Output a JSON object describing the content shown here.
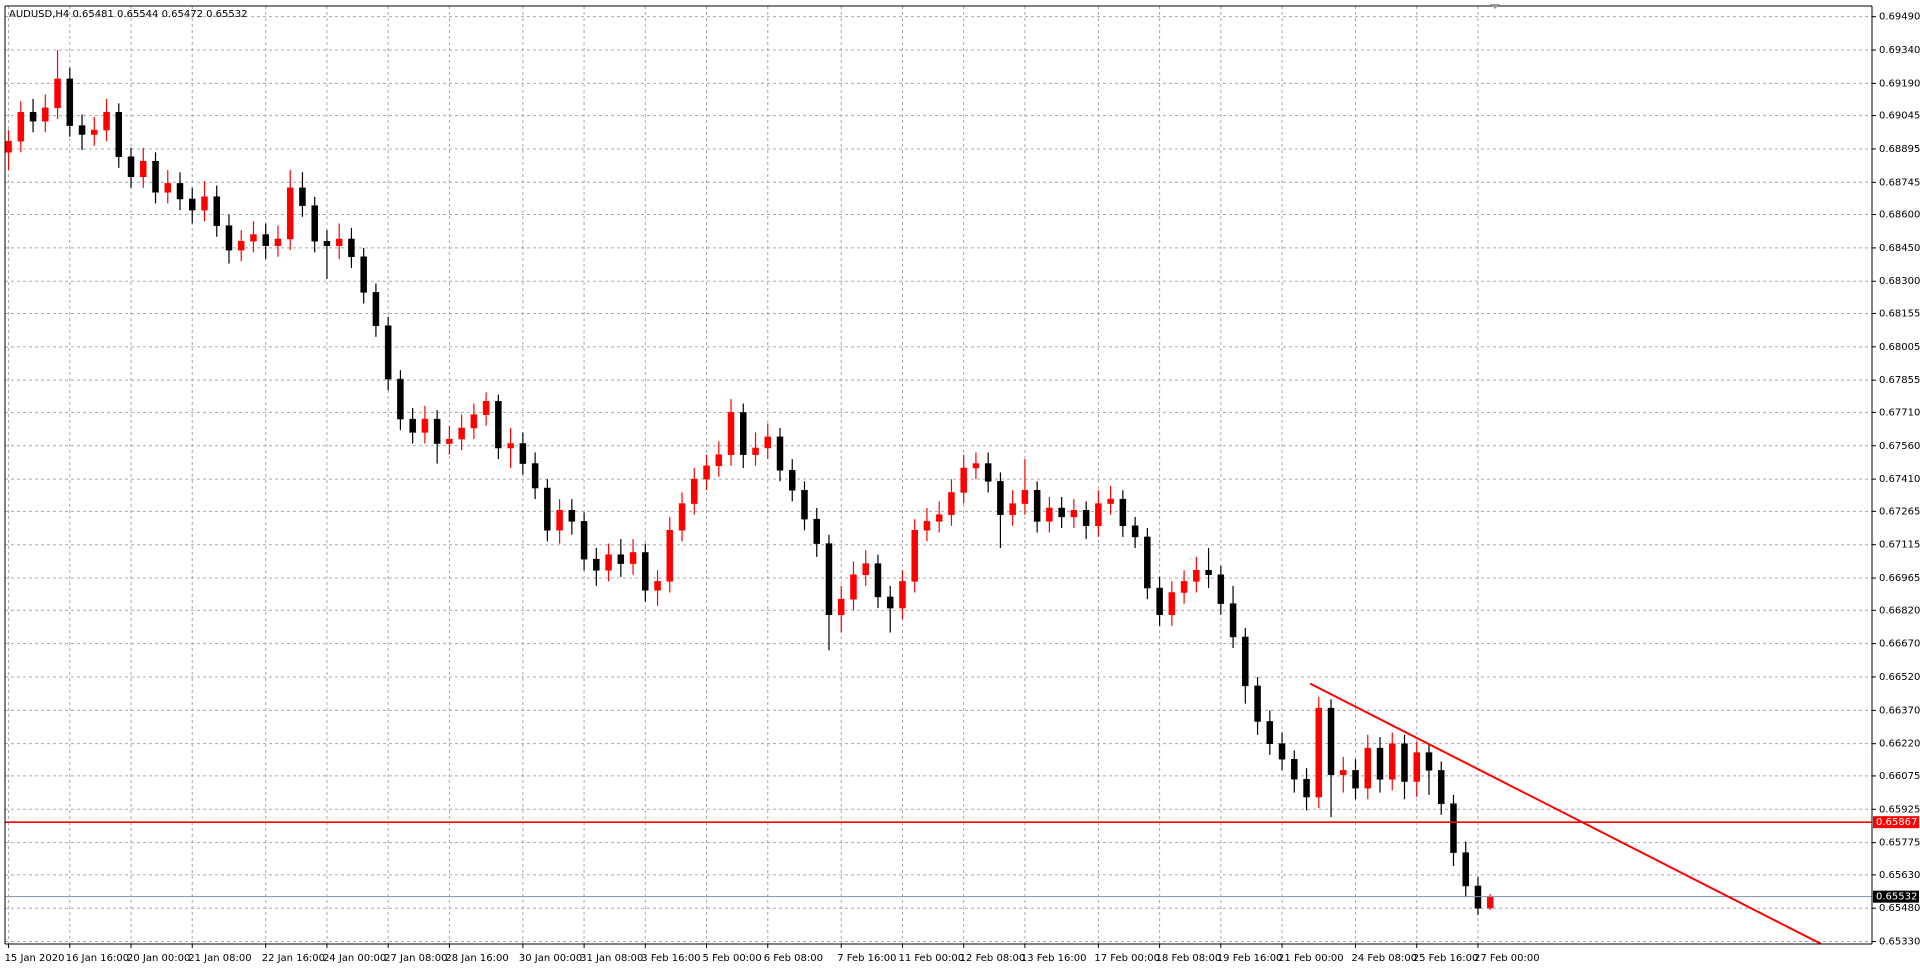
{
  "chart_data": {
    "type": "candlestick",
    "title": "AUDUSD,H4",
    "up_color": "#ff0000",
    "down_color": "#000000",
    "grid": true,
    "ylim": [
      0.65319,
      0.69538
    ],
    "yticks": [
      {
        "value": 0.6949,
        "label": "0.69490"
      },
      {
        "value": 0.6934,
        "label": "0.69340"
      },
      {
        "value": 0.6919,
        "label": "0.69190"
      },
      0.69045,
      0.68895,
      0.68745,
      {
        "value": 0.686,
        "label": "0.68600"
      },
      {
        "value": 0.6845,
        "label": "0.68450"
      },
      {
        "value": 0.683,
        "label": "0.68300"
      },
      0.68155,
      0.68005,
      0.67855,
      {
        "value": 0.6771,
        "label": "0.67710"
      },
      {
        "value": 0.6756,
        "label": "0.67560"
      },
      {
        "value": 0.6741,
        "label": "0.67410"
      },
      0.67265,
      0.67115,
      0.66965,
      {
        "value": 0.6682,
        "label": "0.66820"
      },
      {
        "value": 0.6667,
        "label": "0.66670"
      },
      {
        "value": 0.6652,
        "label": "0.66520"
      },
      {
        "value": 0.6637,
        "label": "0.66370"
      },
      {
        "value": 0.6622,
        "label": "0.66220"
      },
      0.66075,
      0.65925,
      0.65775,
      {
        "value": 0.6563,
        "label": "0.65630"
      },
      {
        "value": 0.6548,
        "label": "0.65480"
      },
      {
        "value": 0.6533,
        "label": "0.65330"
      }
    ],
    "categories": [
      "15 Jan 2020",
      null,
      null,
      null,
      null,
      "16 Jan 16:00",
      null,
      null,
      null,
      null,
      "20 Jan 00:00",
      null,
      null,
      null,
      null,
      "21 Jan 08:00",
      null,
      null,
      null,
      null,
      null,
      "22 Jan 16:00",
      null,
      null,
      null,
      null,
      "24 Jan 00:00",
      null,
      null,
      null,
      null,
      "27 Jan 08:00",
      null,
      null,
      null,
      null,
      "28 Jan 16:00",
      null,
      null,
      null,
      null,
      null,
      "30 Jan 00:00",
      null,
      null,
      null,
      null,
      "31 Jan 08:00",
      null,
      null,
      null,
      null,
      "3 Feb 16:00",
      null,
      null,
      null,
      null,
      "5 Feb 00:00",
      null,
      null,
      null,
      null,
      "6 Feb 08:00",
      null,
      null,
      null,
      null,
      null,
      "7 Feb 16:00",
      null,
      null,
      null,
      null,
      "11 Feb 00:00",
      null,
      null,
      null,
      null,
      "12 Feb 08:00",
      null,
      null,
      null,
      null,
      "13 Feb 16:00",
      null,
      null,
      null,
      null,
      null,
      "17 Feb 00:00",
      null,
      null,
      null,
      null,
      "18 Feb 08:00",
      null,
      null,
      null,
      null,
      "19 Feb 16:00",
      null,
      null,
      null,
      null,
      "21 Feb 00:00",
      null,
      null,
      null,
      null,
      null,
      "24 Feb 08:00",
      null,
      null,
      null,
      null,
      "25 Feb 16:00",
      null,
      null,
      null,
      null,
      "27 Feb 00:00",
      null
    ],
    "open": [
      0.6888,
      0.6893,
      0.6906,
      0.6902,
      0.6908,
      0.6921,
      0.69,
      0.6896,
      0.6898,
      0.6906,
      0.6886,
      0.6877,
      0.6884,
      0.687,
      0.6874,
      0.6867,
      0.6862,
      0.6868,
      0.6855,
      0.6844,
      0.6848,
      0.6851,
      0.6846,
      0.6849,
      0.6872,
      0.6864,
      0.6848,
      0.6846,
      0.6849,
      0.6841,
      0.6825,
      0.681,
      0.6786,
      0.6768,
      0.6762,
      0.6768,
      0.6757,
      0.6759,
      0.6764,
      0.677,
      0.6776,
      0.6755,
      0.6757,
      0.6748,
      0.6737,
      0.6718,
      0.6727,
      0.6722,
      0.6705,
      0.67,
      0.6707,
      0.6703,
      0.6708,
      0.6691,
      0.6695,
      0.6718,
      0.673,
      0.6741,
      0.6747,
      0.6752,
      0.6771,
      0.6752,
      0.6755,
      0.676,
      0.6745,
      0.6736,
      0.6723,
      0.6712,
      0.668,
      0.6687,
      0.6698,
      0.6703,
      0.6688,
      0.6683,
      0.6695,
      0.6718,
      0.6722,
      0.6725,
      0.6735,
      0.6746,
      0.6748,
      0.674,
      0.6725,
      0.673,
      0.6736,
      0.6722,
      0.6728,
      0.6724,
      0.6727,
      0.672,
      0.673,
      0.6732,
      0.672,
      0.6715,
      0.6692,
      0.668,
      0.669,
      0.6695,
      0.67,
      0.6698,
      0.6685,
      0.667,
      0.6648,
      0.6632,
      0.6622,
      0.6615,
      0.6606,
      0.6598,
      0.6638,
      0.6608,
      0.661,
      0.6602,
      0.662,
      0.6606,
      0.6622,
      0.6605,
      0.6618,
      0.661,
      0.6595,
      0.6573,
      0.6558,
      0.65481
    ],
    "high": [
      0.6898,
      0.6911,
      0.6912,
      0.6914,
      0.6934,
      0.6926,
      0.6905,
      0.6904,
      0.6912,
      0.691,
      0.689,
      0.689,
      0.6888,
      0.688,
      0.6879,
      0.6872,
      0.6875,
      0.6873,
      0.686,
      0.6853,
      0.6857,
      0.6856,
      0.6855,
      0.688,
      0.6879,
      0.6868,
      0.6853,
      0.6856,
      0.6854,
      0.6845,
      0.6829,
      0.6814,
      0.679,
      0.6773,
      0.6774,
      0.6772,
      0.6765,
      0.677,
      0.6775,
      0.678,
      0.6779,
      0.6764,
      0.6762,
      0.6753,
      0.6741,
      0.6732,
      0.6732,
      0.6726,
      0.671,
      0.6712,
      0.6714,
      0.6714,
      0.6712,
      0.67,
      0.6724,
      0.6735,
      0.6746,
      0.6752,
      0.6758,
      0.6777,
      0.6775,
      0.6762,
      0.6766,
      0.6764,
      0.675,
      0.674,
      0.6728,
      0.6716,
      0.6693,
      0.6704,
      0.6709,
      0.6707,
      0.6693,
      0.67,
      0.6723,
      0.6728,
      0.6731,
      0.6741,
      0.6752,
      0.6753,
      0.6753,
      0.6744,
      0.6736,
      0.675,
      0.674,
      0.6733,
      0.6733,
      0.6732,
      0.6731,
      0.6736,
      0.6738,
      0.6736,
      0.6724,
      0.6719,
      0.6697,
      0.6695,
      0.67,
      0.6706,
      0.671,
      0.6702,
      0.6693,
      0.6674,
      0.6652,
      0.6637,
      0.6627,
      0.6619,
      0.6611,
      0.6643,
      0.6642,
      0.6616,
      0.6615,
      0.6626,
      0.6625,
      0.6627,
      0.6626,
      0.6623,
      0.6622,
      0.6614,
      0.6599,
      0.6578,
      0.6562,
      0.65544
    ],
    "low": [
      0.688,
      0.6888,
      0.6897,
      0.6897,
      0.6903,
      0.6895,
      0.6889,
      0.6891,
      0.6893,
      0.6881,
      0.6872,
      0.6872,
      0.6865,
      0.6865,
      0.6862,
      0.6856,
      0.6857,
      0.685,
      0.6838,
      0.6839,
      0.6843,
      0.684,
      0.6841,
      0.6844,
      0.6859,
      0.6843,
      0.6831,
      0.684,
      0.6836,
      0.682,
      0.6805,
      0.6781,
      0.6763,
      0.6757,
      0.6757,
      0.6748,
      0.6752,
      0.6754,
      0.6759,
      0.6765,
      0.675,
      0.6746,
      0.6743,
      0.6732,
      0.6713,
      0.6712,
      0.6716,
      0.67,
      0.6693,
      0.6695,
      0.6697,
      0.6698,
      0.6686,
      0.6684,
      0.669,
      0.6713,
      0.6725,
      0.6736,
      0.6742,
      0.6747,
      0.6746,
      0.6747,
      0.675,
      0.674,
      0.6731,
      0.6718,
      0.6706,
      0.6664,
      0.6672,
      0.6682,
      0.6693,
      0.6683,
      0.6672,
      0.6678,
      0.669,
      0.6713,
      0.6717,
      0.672,
      0.673,
      0.6741,
      0.6735,
      0.671,
      0.672,
      0.6725,
      0.6717,
      0.6717,
      0.6719,
      0.6719,
      0.6714,
      0.6715,
      0.6725,
      0.6715,
      0.671,
      0.6687,
      0.6675,
      0.6675,
      0.6685,
      0.669,
      0.6692,
      0.668,
      0.6665,
      0.664,
      0.6626,
      0.6617,
      0.661,
      0.66,
      0.6592,
      0.6593,
      0.6589,
      0.66,
      0.6597,
      0.6597,
      0.66,
      0.6601,
      0.6597,
      0.6598,
      0.6599,
      0.659,
      0.6567,
      0.6553,
      0.6545,
      0.65472
    ],
    "close": [
      0.6893,
      0.6906,
      0.6902,
      0.6908,
      0.6921,
      0.69,
      0.6896,
      0.6898,
      0.6906,
      0.6886,
      0.6877,
      0.6884,
      0.687,
      0.6874,
      0.6867,
      0.6862,
      0.6868,
      0.6855,
      0.6844,
      0.6848,
      0.6851,
      0.6846,
      0.6849,
      0.6872,
      0.6864,
      0.6848,
      0.6846,
      0.6849,
      0.6841,
      0.6825,
      0.681,
      0.6786,
      0.6768,
      0.6762,
      0.6768,
      0.6757,
      0.6759,
      0.6764,
      0.677,
      0.6776,
      0.6755,
      0.6757,
      0.6748,
      0.6737,
      0.6718,
      0.6727,
      0.6722,
      0.6705,
      0.67,
      0.6707,
      0.6703,
      0.6708,
      0.6691,
      0.6695,
      0.6718,
      0.673,
      0.6741,
      0.6747,
      0.6752,
      0.6771,
      0.6752,
      0.6755,
      0.676,
      0.6745,
      0.6736,
      0.6723,
      0.6712,
      0.668,
      0.6687,
      0.6698,
      0.6703,
      0.6688,
      0.6683,
      0.6695,
      0.6718,
      0.6722,
      0.6725,
      0.6735,
      0.6746,
      0.6748,
      0.674,
      0.6725,
      0.673,
      0.6736,
      0.6722,
      0.6728,
      0.6724,
      0.6727,
      0.672,
      0.673,
      0.6732,
      0.672,
      0.6715,
      0.6692,
      0.668,
      0.669,
      0.6695,
      0.67,
      0.6698,
      0.6685,
      0.667,
      0.6648,
      0.6632,
      0.6622,
      0.6615,
      0.6606,
      0.6598,
      0.6638,
      0.6608,
      0.661,
      0.6602,
      0.662,
      0.6606,
      0.6622,
      0.6605,
      0.6618,
      0.661,
      0.6595,
      0.6573,
      0.6558,
      0.6548,
      0.65532
    ],
    "hline": 0.65867,
    "trendline": {
      "x": [
        106.3,
        148
      ],
      "y": [
        0.6649,
        0.6532
      ]
    }
  }
}
